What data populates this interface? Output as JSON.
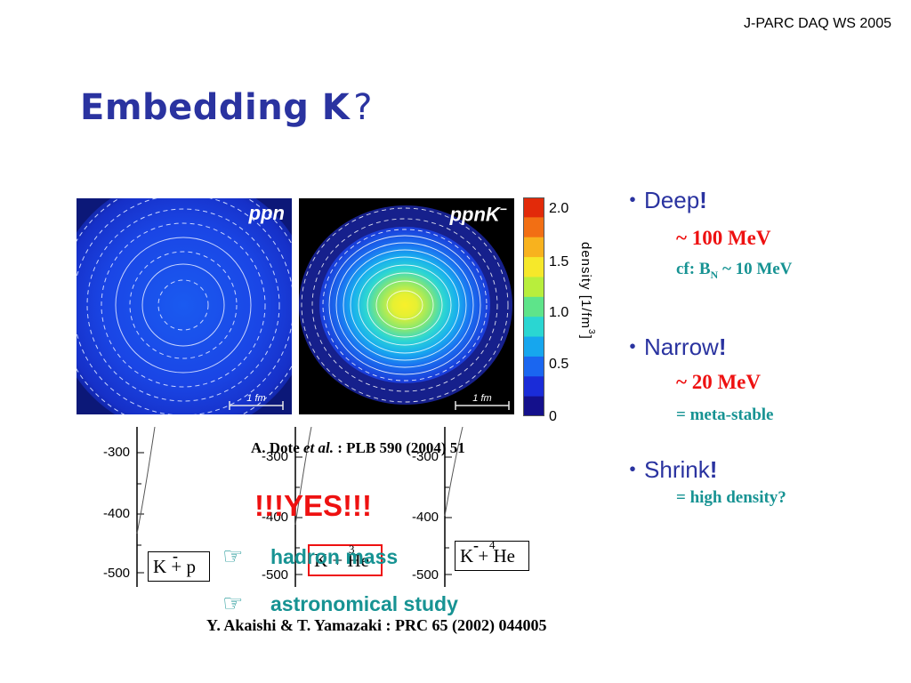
{
  "header": {
    "label": "J-PARC DAQ WS 2005"
  },
  "title": {
    "main": "Embedding K",
    "suffix": "?"
  },
  "figure": {
    "panel_left_label": "ppn",
    "panel_right_label": "ppnK",
    "panel_right_sup": "−",
    "scale_label": "1 fm",
    "colorbar_ticks": [
      "2.0",
      "1.5",
      "1.0",
      "0.5",
      "0"
    ],
    "colorbar_title": "density [1/fm",
    "colorbar_title_sup": "3",
    "colorbar_title_end": "]",
    "colorbar_colors": [
      "#e22a0a",
      "#f26f14",
      "#f8b21e",
      "#f6e82a",
      "#b8ee3c",
      "#5ee48a",
      "#2ad6d2",
      "#16a6ee",
      "#1a66f0",
      "#1a2cd8",
      "#14108c"
    ]
  },
  "citations": {
    "dote_author": "A. Dote",
    "dote_etal": "et al.",
    "dote_ref": ": PLB 590 (2004) 51",
    "akaishi": "Y. Akaishi & T. Yamazaki : PRC 65 (2002) 044005"
  },
  "plots": {
    "tick_labels": [
      "-300",
      "-400",
      "-500"
    ],
    "box_kp": "K + p",
    "box_k3he": "K + He",
    "box_k4he": "K + He",
    "minus_sign": "-",
    "mass_3": "3",
    "mass_4": "4"
  },
  "callout": {
    "yes": "!!!YES!!!",
    "hand_icon": "☞",
    "hadron": "hadron mass",
    "astro": "astronomical study"
  },
  "bullets": [
    {
      "head": "Deep",
      "bang": "!",
      "subs": [
        {
          "text": "~ 100 MeV",
          "style": "red"
        }
      ],
      "cf_pre": "cf: B",
      "cf_sub": "N",
      "cf_post": " ~ 10 MeV"
    },
    {
      "head": "Narrow",
      "bang": "!",
      "subs": [
        {
          "text": "~ 20 MeV",
          "style": "red"
        },
        {
          "text": "= meta-stable",
          "style": "teal"
        }
      ]
    },
    {
      "head": "Shrink",
      "bang": "!",
      "subs": [
        {
          "text": "= high density?",
          "style": "teal"
        }
      ]
    }
  ],
  "bullet_mark": "・"
}
